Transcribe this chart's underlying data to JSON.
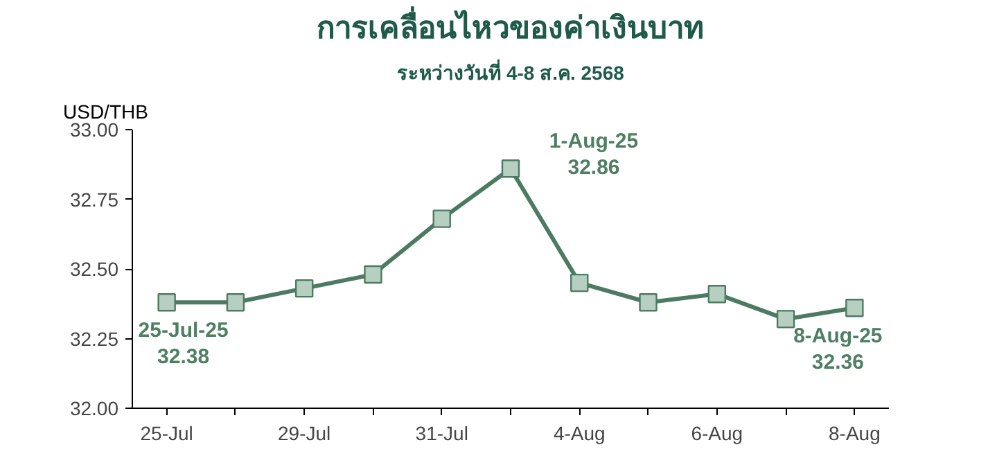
{
  "chart_data": {
    "type": "line",
    "title": "การเคลื่อนไหวของค่าเงินบาท",
    "subtitle": "ระหว่างวันที่ 4-8 ส.ค. 2568",
    "ylabel": "USD/THB",
    "categories": [
      "25-Jul",
      null,
      "29-Jul",
      null,
      "31-Jul",
      null,
      "4-Aug",
      null,
      "6-Aug",
      null,
      "8-Aug"
    ],
    "series": [
      {
        "color": "#4d7a62",
        "values": [
          32.38,
          32.38,
          32.43,
          32.48,
          32.68,
          32.86,
          32.45,
          32.38,
          32.41,
          32.32,
          32.36
        ],
        "value_labels": [
          "25-Jul-25\n32.38",
          null,
          null,
          null,
          null,
          "1-Aug-25\n32.86",
          null,
          null,
          null,
          null,
          "8-Aug-25\n32.36"
        ]
      }
    ],
    "ylim": [
      32.0,
      33.0
    ],
    "yticks": [
      {
        "value": 32.0,
        "label": "32.00"
      },
      {
        "value": 32.25,
        "label": "32.25"
      },
      {
        "value": 32.5,
        "label": "32.50"
      },
      {
        "value": 32.75,
        "label": "32.75"
      },
      {
        "value": 33.0,
        "label": "33.00"
      }
    ],
    "marker": "square",
    "grid": false
  }
}
